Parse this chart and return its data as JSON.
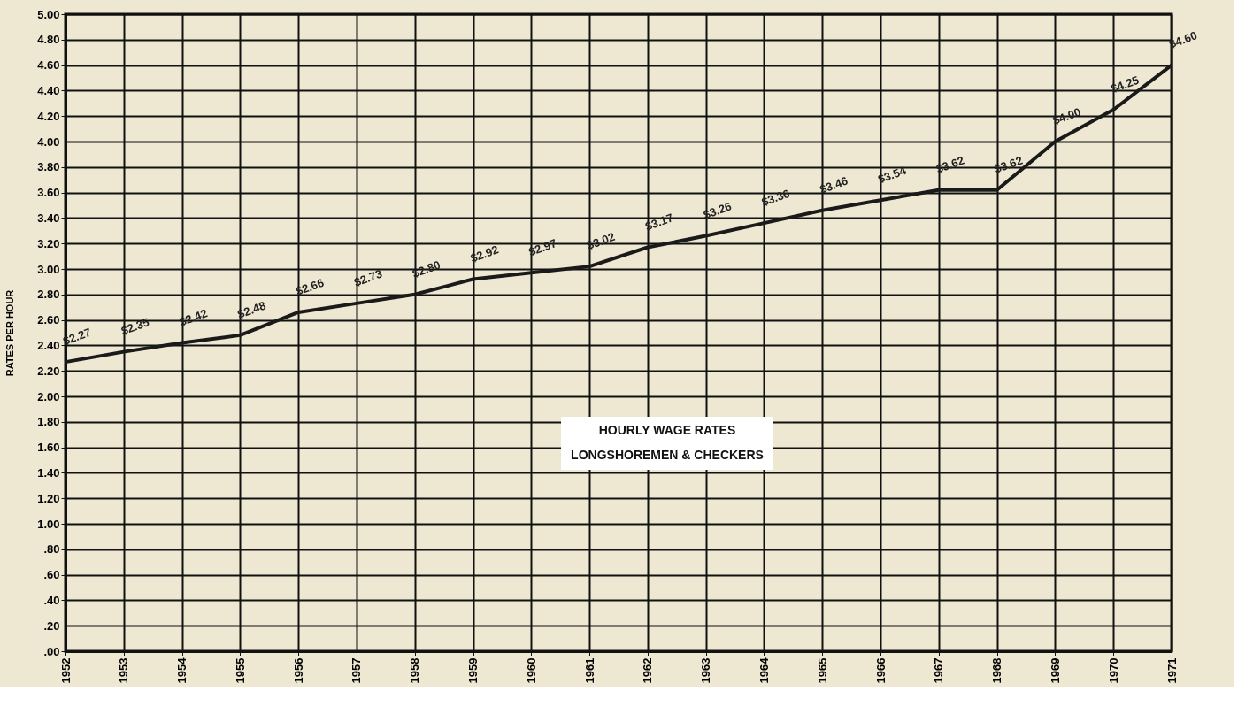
{
  "chart_data": {
    "type": "line",
    "title": "HOURLY WAGE RATES",
    "subtitle": "LONGSHOREMEN & CHECKERS",
    "ylabel": "RATES PER HOUR",
    "categories": [
      "1952",
      "1953",
      "1954",
      "1955",
      "1956",
      "1957",
      "1958",
      "1959",
      "1960",
      "1961",
      "1962",
      "1963",
      "1964",
      "1965",
      "1966",
      "1967",
      "1968",
      "1969",
      "1970",
      "1971"
    ],
    "series": [
      {
        "color": "#1a1a1a",
        "values": [
          2.27,
          2.35,
          2.42,
          2.48,
          2.66,
          2.73,
          2.8,
          2.92,
          2.97,
          3.02,
          3.17,
          3.26,
          3.36,
          3.46,
          3.54,
          3.62,
          3.62,
          4.0,
          4.25,
          4.6
        ],
        "value_labels": [
          "$2.27",
          "$2.35",
          "$2.42",
          "$2.48",
          "$2.66",
          "$2.73",
          "$2.80",
          "$2.92",
          "$2.97",
          "$3.02",
          "$3.17",
          "$3.26",
          "$3.36",
          "$3.46",
          "$3.54",
          "$3.62",
          "$3.62",
          "$4.00",
          "$4.25",
          "$4.60"
        ]
      }
    ],
    "ylim": [
      0,
      5
    ],
    "yticks": [
      {
        "value": 0,
        "label": ".00"
      },
      {
        "value": 0.2,
        "label": ".20"
      },
      {
        "value": 0.4,
        "label": ".40"
      },
      {
        "value": 0.6,
        "label": ".60"
      },
      {
        "value": 0.8,
        "label": ".80"
      },
      {
        "value": 1,
        "label": "1.00"
      },
      {
        "value": 1.2,
        "label": "1.20"
      },
      {
        "value": 1.4,
        "label": "1.40"
      },
      {
        "value": 1.6,
        "label": "1.60"
      },
      {
        "value": 1.8,
        "label": "1.80"
      },
      {
        "value": 2,
        "label": "2.00"
      },
      {
        "value": 2.2,
        "label": "2.20"
      },
      {
        "value": 2.4,
        "label": "2.40"
      },
      {
        "value": 2.6,
        "label": "2.60"
      },
      {
        "value": 2.8,
        "label": "2.80"
      },
      {
        "value": 3,
        "label": "3.00"
      },
      {
        "value": 3.2,
        "label": "3.20"
      },
      {
        "value": 3.4,
        "label": "3.40"
      },
      {
        "value": 3.6,
        "label": "3.60"
      },
      {
        "value": 3.8,
        "label": "3.80"
      },
      {
        "value": 4,
        "label": "4.00"
      },
      {
        "value": 4.2,
        "label": "4.20"
      },
      {
        "value": 4.4,
        "label": "4.40"
      },
      {
        "value": 4.6,
        "label": "4.60"
      },
      {
        "value": 4.8,
        "label": "4.80"
      },
      {
        "value": 5,
        "label": "5.00"
      }
    ],
    "grid": true,
    "marker": "none",
    "line_style": "solid"
  }
}
